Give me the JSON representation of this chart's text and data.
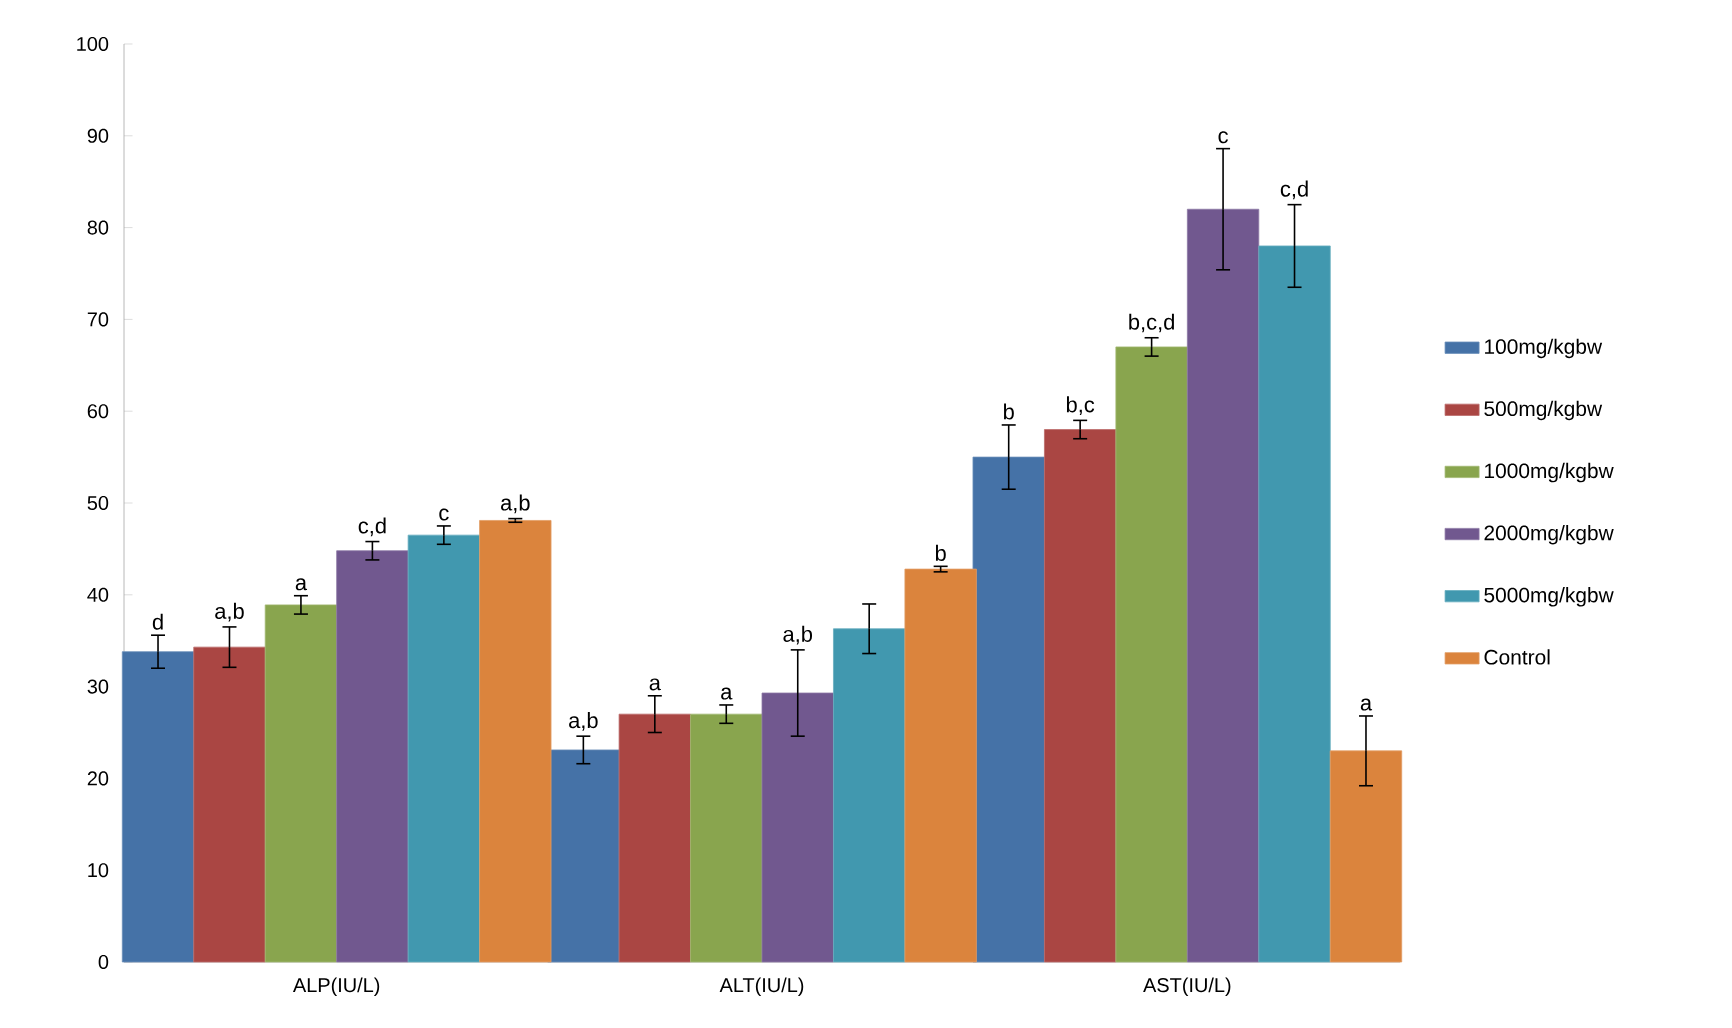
{
  "chart_data": {
    "type": "bar",
    "categories": [
      "ALP(IU/L)",
      "ALT(IU/L)",
      "AST(IU/L)"
    ],
    "series": [
      {
        "name": "100mg/kgbw",
        "color": "#4572a7",
        "values": [
          33.8,
          23.1,
          55
        ],
        "errors": [
          1.8,
          1.5,
          3.5
        ],
        "value_labels": [
          "d",
          "a,b",
          "b"
        ]
      },
      {
        "name": "500mg/kgbw",
        "color": "#aa4643",
        "values": [
          34.3,
          27,
          58
        ],
        "errors": [
          2.2,
          2,
          1
        ],
        "value_labels": [
          "a,b",
          "a",
          "b,c"
        ]
      },
      {
        "name": "1000mg/kgbw",
        "color": "#89a54e",
        "values": [
          38.9,
          27,
          67
        ],
        "errors": [
          1,
          1,
          1
        ],
        "value_labels": [
          "a",
          "a",
          "b,c,d"
        ]
      },
      {
        "name": "2000mg/kgbw",
        "color": "#71588f",
        "values": [
          44.8,
          29.3,
          82
        ],
        "errors": [
          1,
          4.7,
          6.6
        ],
        "value_labels": [
          "c,d",
          "a,b",
          "c"
        ]
      },
      {
        "name": "5000mg/kgbw",
        "color": "#4198af",
        "values": [
          46.5,
          36.3,
          78
        ],
        "errors": [
          1,
          2.7,
          4.5
        ],
        "value_labels": [
          "c",
          null,
          "c,d"
        ]
      },
      {
        "name": "Control",
        "color": "#db843d",
        "values": [
          48.1,
          42.8,
          23
        ],
        "errors": [
          0.2,
          0.3,
          3.8
        ],
        "value_labels": [
          "a,b",
          "b",
          "a"
        ]
      }
    ],
    "ylim": [
      0,
      100
    ],
    "yticks": [
      0,
      10,
      20,
      30,
      40,
      50,
      60,
      70,
      80,
      90,
      100
    ],
    "grid": false,
    "legend": "right"
  }
}
